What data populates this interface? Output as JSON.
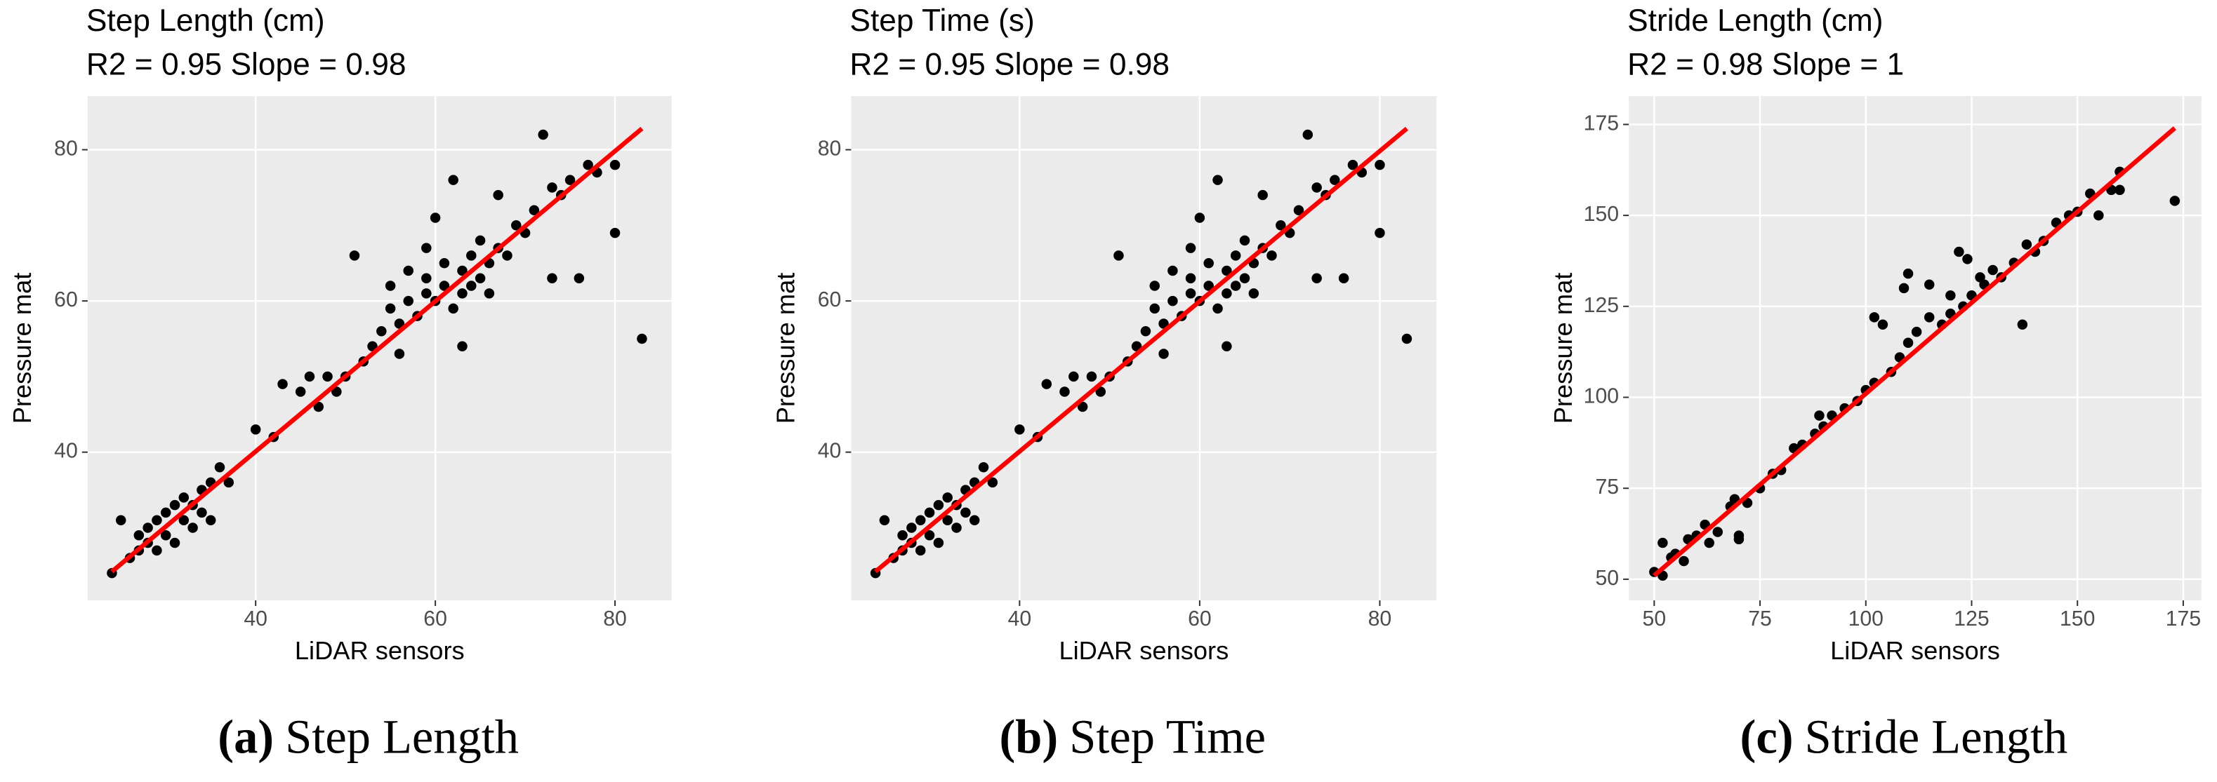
{
  "chart_data": [
    {
      "type": "scatter",
      "title": "Step Length (cm)",
      "subtitle": "R2 =  0.95  Slope = 0.98",
      "x_label": "LiDAR sensors",
      "y_label": "Pressure mat",
      "caption_tag": "(a)",
      "caption": "Step Length",
      "color": "#000000",
      "grid": true,
      "background": "#ebebeb",
      "xlim": [
        21.3,
        86.3
      ],
      "ylim": [
        20.4,
        87.1
      ],
      "xticks": [
        40,
        60,
        80
      ],
      "yticks": [
        40,
        60,
        80
      ],
      "x": [
        24,
        25,
        26,
        27,
        27,
        28,
        28,
        29,
        29,
        30,
        30,
        31,
        31,
        32,
        32,
        33,
        33,
        34,
        34,
        35,
        35,
        36,
        37,
        40,
        42,
        43,
        45,
        46,
        47,
        48,
        49,
        50,
        51,
        52,
        53,
        54,
        55,
        55,
        56,
        57,
        57,
        58,
        59,
        59,
        60,
        60,
        61,
        61,
        62,
        62,
        63,
        63,
        64,
        64,
        65,
        65,
        66,
        66,
        67,
        67,
        68,
        69,
        70,
        71,
        72,
        73,
        73,
        74,
        75,
        76,
        77,
        78,
        80,
        80,
        83,
        59,
        56,
        63
      ],
      "y": [
        24,
        31,
        26,
        29,
        27,
        30,
        28,
        31,
        27,
        32,
        29,
        33,
        28,
        31,
        34,
        30,
        33,
        32,
        35,
        31,
        36,
        38,
        36,
        43,
        42,
        49,
        48,
        50,
        46,
        50,
        48,
        50,
        66,
        52,
        54,
        56,
        59,
        62,
        57,
        60,
        64,
        58,
        61,
        63,
        60,
        71,
        62,
        65,
        59,
        76,
        64,
        61,
        66,
        62,
        63,
        68,
        65,
        61,
        74,
        67,
        66,
        70,
        69,
        72,
        82,
        75,
        63,
        74,
        76,
        63,
        78,
        77,
        78,
        69,
        55,
        67,
        53,
        54
      ],
      "fit": {
        "color": "#ff0000",
        "x": [
          24,
          83
        ],
        "y": [
          24.2,
          82.8
        ]
      }
    },
    {
      "type": "scatter",
      "title": "Step Time (s)",
      "subtitle": "R2 =  0.95  Slope = 0.98",
      "x_label": "LiDAR sensors",
      "y_label": "Pressure mat",
      "caption_tag": "(b)",
      "caption": "Step Time",
      "color": "#000000",
      "grid": true,
      "background": "#ebebeb",
      "xlim": [
        21.3,
        86.3
      ],
      "ylim": [
        20.4,
        87.1
      ],
      "xticks": [
        40,
        60,
        80
      ],
      "yticks": [
        40,
        60,
        80
      ],
      "x": [
        24,
        25,
        26,
        27,
        27,
        28,
        28,
        29,
        29,
        30,
        30,
        31,
        31,
        32,
        32,
        33,
        33,
        34,
        34,
        35,
        35,
        36,
        37,
        40,
        42,
        43,
        45,
        46,
        47,
        48,
        49,
        50,
        51,
        52,
        53,
        54,
        55,
        55,
        56,
        57,
        57,
        58,
        59,
        59,
        60,
        60,
        61,
        61,
        62,
        62,
        63,
        63,
        64,
        64,
        65,
        65,
        66,
        66,
        67,
        67,
        68,
        69,
        70,
        71,
        72,
        73,
        73,
        74,
        75,
        76,
        77,
        78,
        80,
        80,
        83,
        59,
        56,
        63
      ],
      "y": [
        24,
        31,
        26,
        29,
        27,
        30,
        28,
        31,
        27,
        32,
        29,
        33,
        28,
        31,
        34,
        30,
        33,
        32,
        35,
        31,
        36,
        38,
        36,
        43,
        42,
        49,
        48,
        50,
        46,
        50,
        48,
        50,
        66,
        52,
        54,
        56,
        59,
        62,
        57,
        60,
        64,
        58,
        61,
        63,
        60,
        71,
        62,
        65,
        59,
        76,
        64,
        61,
        66,
        62,
        63,
        68,
        65,
        61,
        74,
        67,
        66,
        70,
        69,
        72,
        82,
        75,
        63,
        74,
        76,
        63,
        78,
        77,
        78,
        69,
        55,
        67,
        53,
        54
      ],
      "fit": {
        "color": "#ff0000",
        "x": [
          24,
          83
        ],
        "y": [
          24.2,
          82.8
        ]
      }
    },
    {
      "type": "scatter",
      "title": "Stride Length (cm)",
      "subtitle": "R2 =  0.98  Slope = 1",
      "x_label": "LiDAR sensors",
      "y_label": "Pressure mat",
      "caption_tag": "(c)",
      "caption": "Stride Length",
      "color": "#000000",
      "grid": true,
      "background": "#ebebeb",
      "xlim": [
        44,
        179.3
      ],
      "ylim": [
        44.2,
        182.8
      ],
      "xticks": [
        50,
        75,
        100,
        125,
        150,
        175
      ],
      "yticks": [
        50,
        75,
        100,
        125,
        150,
        175
      ],
      "x": [
        50,
        52,
        52,
        54,
        55,
        57,
        58,
        60,
        62,
        63,
        65,
        68,
        69,
        70,
        70,
        72,
        75,
        78,
        80,
        83,
        85,
        88,
        89,
        90,
        92,
        95,
        98,
        100,
        102,
        102,
        104,
        106,
        108,
        109,
        110,
        110,
        112,
        115,
        115,
        118,
        120,
        120,
        122,
        123,
        124,
        125,
        127,
        128,
        130,
        132,
        135,
        137,
        138,
        140,
        142,
        145,
        148,
        150,
        153,
        155,
        158,
        160,
        160,
        173
      ],
      "y": [
        52,
        51,
        60,
        56,
        57,
        55,
        61,
        62,
        65,
        60,
        63,
        70,
        72,
        62,
        61,
        71,
        75,
        79,
        80,
        86,
        87,
        90,
        95,
        92,
        95,
        97,
        99,
        102,
        104,
        122,
        120,
        107,
        111,
        130,
        134,
        115,
        118,
        122,
        131,
        120,
        123,
        128,
        140,
        125,
        138,
        128,
        133,
        131,
        135,
        133,
        137,
        120,
        142,
        140,
        143,
        148,
        150,
        151,
        156,
        150,
        157,
        162,
        157,
        154
      ],
      "fit": {
        "color": "#ff0000",
        "x": [
          50,
          173
        ],
        "y": [
          51,
          174
        ]
      }
    }
  ]
}
